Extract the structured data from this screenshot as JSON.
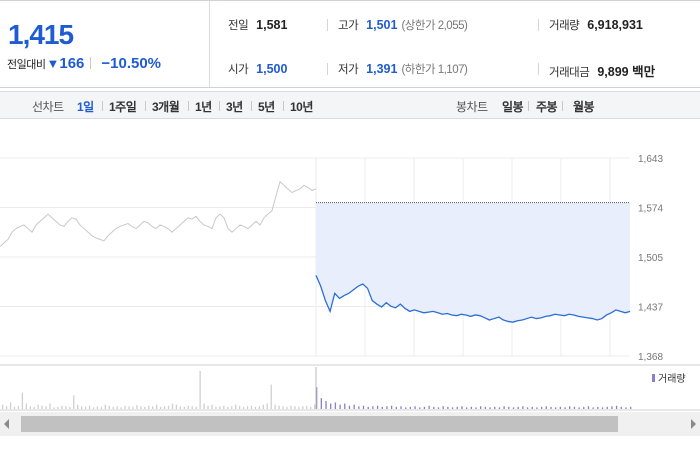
{
  "quote": {
    "price": "1,415",
    "change_label": "전일대비",
    "change_arrow": "▼",
    "change_value": "166",
    "change_pct": "−10.50%",
    "prev_close": {
      "label": "전일",
      "value": "1,581"
    },
    "open": {
      "label": "시가",
      "value": "1,500"
    },
    "high": {
      "label": "고가",
      "value": "1,501",
      "limit_text": "(상한가 2,055)"
    },
    "low": {
      "label": "저가",
      "value": "1,391",
      "limit_text": "(하한가 1,107)"
    },
    "volume": {
      "label": "거래량",
      "value": "6,918,931"
    },
    "turnover": {
      "label": "거래대금",
      "value": "9,899 백만"
    }
  },
  "nav": {
    "line_label": "선차트",
    "periods": [
      "1일",
      "1주일",
      "3개월",
      "1년",
      "3년",
      "5년",
      "10년"
    ],
    "active_period": "1일",
    "candle_label": "봉차트",
    "candles": [
      "일봉",
      "주봉",
      "월봉"
    ]
  },
  "colors": {
    "accent": "#1f5bd1",
    "line_today": "#2b6fd6",
    "line_prev": "#c8c8c8",
    "fill_today": "#e8eefb",
    "volume_today": "#8a7fc8",
    "volume_prev": "#cfcfcf"
  },
  "chart_data": {
    "type": "line",
    "title": "",
    "xlabel": "",
    "ylabel": "",
    "yticks": [
      "1,643",
      "1,574",
      "1,505",
      "1,437",
      "1,368"
    ],
    "ylim": [
      1368,
      1643
    ],
    "prev_close": 1581,
    "grid": true,
    "legend": {
      "label": "거래량",
      "placement": "bottom-right"
    },
    "series": [
      {
        "name": "",
        "values": [
          1520,
          1525,
          1530,
          1540,
          1545,
          1548,
          1550,
          1545,
          1540,
          1550,
          1555,
          1560,
          1565,
          1560,
          1555,
          1550,
          1548,
          1555,
          1560,
          1558,
          1550,
          1545,
          1540,
          1535,
          1532,
          1530,
          1528,
          1535,
          1540,
          1545,
          1548,
          1550,
          1552,
          1548,
          1545,
          1550,
          1555,
          1553,
          1548,
          1545,
          1550,
          1548,
          1545,
          1540,
          1545,
          1550,
          1555,
          1560,
          1558,
          1562,
          1555,
          1550,
          1548,
          1545,
          1560,
          1565,
          1560,
          1545,
          1540,
          1545,
          1550,
          1548,
          1545,
          1550,
          1555,
          1550,
          1560,
          1565,
          1570,
          1590,
          1610,
          1605,
          1600,
          1595,
          1598,
          1600,
          1605,
          1602,
          1598,
          1600
        ]
      },
      {
        "name": "",
        "values": [
          1480,
          1465,
          1445,
          1430,
          1455,
          1448,
          1452,
          1455,
          1460,
          1465,
          1468,
          1462,
          1445,
          1440,
          1436,
          1442,
          1437,
          1435,
          1440,
          1434,
          1430,
          1432,
          1430,
          1428,
          1429,
          1430,
          1428,
          1426,
          1427,
          1425,
          1424,
          1426,
          1425,
          1423,
          1425,
          1424,
          1421,
          1418,
          1420,
          1422,
          1418,
          1416,
          1415,
          1417,
          1418,
          1420,
          1422,
          1420,
          1421,
          1423,
          1424,
          1426,
          1425,
          1424,
          1426,
          1425,
          1423,
          1422,
          1421,
          1420,
          1418,
          1420,
          1425,
          1428,
          1432,
          1430,
          1428,
          1430
        ]
      }
    ],
    "volume": {
      "name": "",
      "prev_session": [
        8,
        5,
        12,
        4,
        6,
        30,
        10,
        5,
        4,
        8,
        6,
        5,
        10,
        3,
        4,
        6,
        5,
        4,
        25,
        8,
        5,
        4,
        6,
        3,
        5,
        4,
        8,
        6,
        4,
        5,
        3,
        6,
        5,
        4,
        7,
        5,
        4,
        6,
        5,
        8,
        4,
        5,
        6,
        10,
        8,
        5,
        4,
        6,
        5,
        4,
        70,
        10,
        6,
        8,
        4,
        5,
        6,
        4,
        5,
        8,
        6,
        4,
        5,
        6,
        4,
        5,
        8,
        10,
        45,
        8,
        6,
        5,
        4,
        6,
        5,
        4,
        5,
        6,
        4,
        8
      ],
      "today_session": [
        40,
        20,
        15,
        10,
        12,
        8,
        10,
        6,
        8,
        5,
        6,
        4,
        5,
        6,
        4,
        5,
        6,
        4,
        5,
        3,
        4,
        5,
        3,
        4,
        6,
        4,
        3,
        5,
        4,
        3,
        4,
        5,
        3,
        4,
        3,
        5,
        4,
        3,
        4,
        3,
        5,
        4,
        3,
        4,
        5,
        3,
        4,
        3,
        4,
        5,
        4,
        3,
        4,
        3,
        5,
        4,
        3,
        4,
        5,
        3,
        4,
        3,
        4,
        5,
        6,
        4,
        3,
        4
      ]
    }
  }
}
